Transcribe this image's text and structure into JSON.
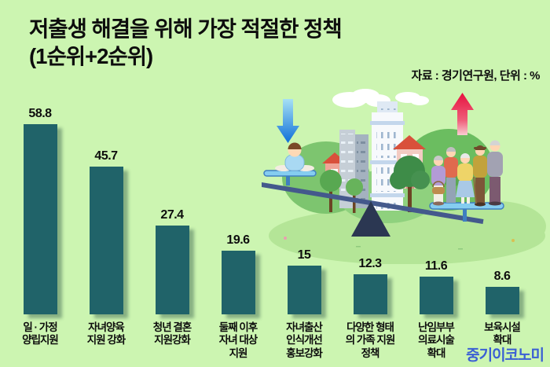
{
  "header": {
    "title_line1": "저출생 해결을 위해 가장 적절한 정책",
    "title_line2": "(1순위+2순위)",
    "source_note": "자료 : 경기연구원, 단위 : %"
  },
  "footer": {
    "logo_text": "중기이코노미",
    "logo_color": "#3a5fd4"
  },
  "colors": {
    "background": "#ccf5b1",
    "bar": "#206369",
    "text": "#0d0d0d",
    "down_arrow_blue": "#0e6fd8",
    "up_arrow_red": "#e6123f",
    "seesaw_beam": "#44598c",
    "fulcrum_navy": "#2b3752"
  },
  "illustration": {
    "icons": [
      "down-arrow-icon",
      "up-arrow-icon",
      "cloud-icon",
      "city-buildings-icon",
      "tree-icon",
      "seesaw-icon",
      "baby-figure-icon",
      "elderly-group-icon",
      "fulcrum-icon"
    ]
  },
  "chart_data": {
    "type": "bar",
    "title": "저출생 해결을 위해 가장 적절한 정책 (1순위+2순위)",
    "unit": "%",
    "source": "경기연구원",
    "categories": [
      "일 · 가정 양립지원",
      "자녀양육 지원 강화",
      "청년 결혼 지원강화",
      "둘째 이후 자녀 대상 지원",
      "자녀출산 인식개선 홍보강화",
      "다양한 형태의 가족 지원 정책",
      "난임부부 의료시술 확대",
      "보육시설 확대"
    ],
    "category_lines": [
      [
        "일 · 가정",
        "양립지원"
      ],
      [
        "자녀양육",
        "지원 강화"
      ],
      [
        "청년 결혼",
        "지원강화"
      ],
      [
        "둘째 이후",
        "자녀 대상",
        "지원"
      ],
      [
        "자녀출산",
        "인식개선",
        "홍보강화"
      ],
      [
        "다양한 형태",
        "의 가족 지원",
        "정책"
      ],
      [
        "난임부부",
        "의료시술",
        "확대"
      ],
      [
        "보육시설",
        "확대"
      ]
    ],
    "values": [
      58.8,
      45.7,
      27.4,
      19.6,
      15,
      12.3,
      11.6,
      8.6
    ],
    "ylim": [
      0,
      65
    ],
    "grid": false,
    "value_labels": true,
    "legend": false
  }
}
